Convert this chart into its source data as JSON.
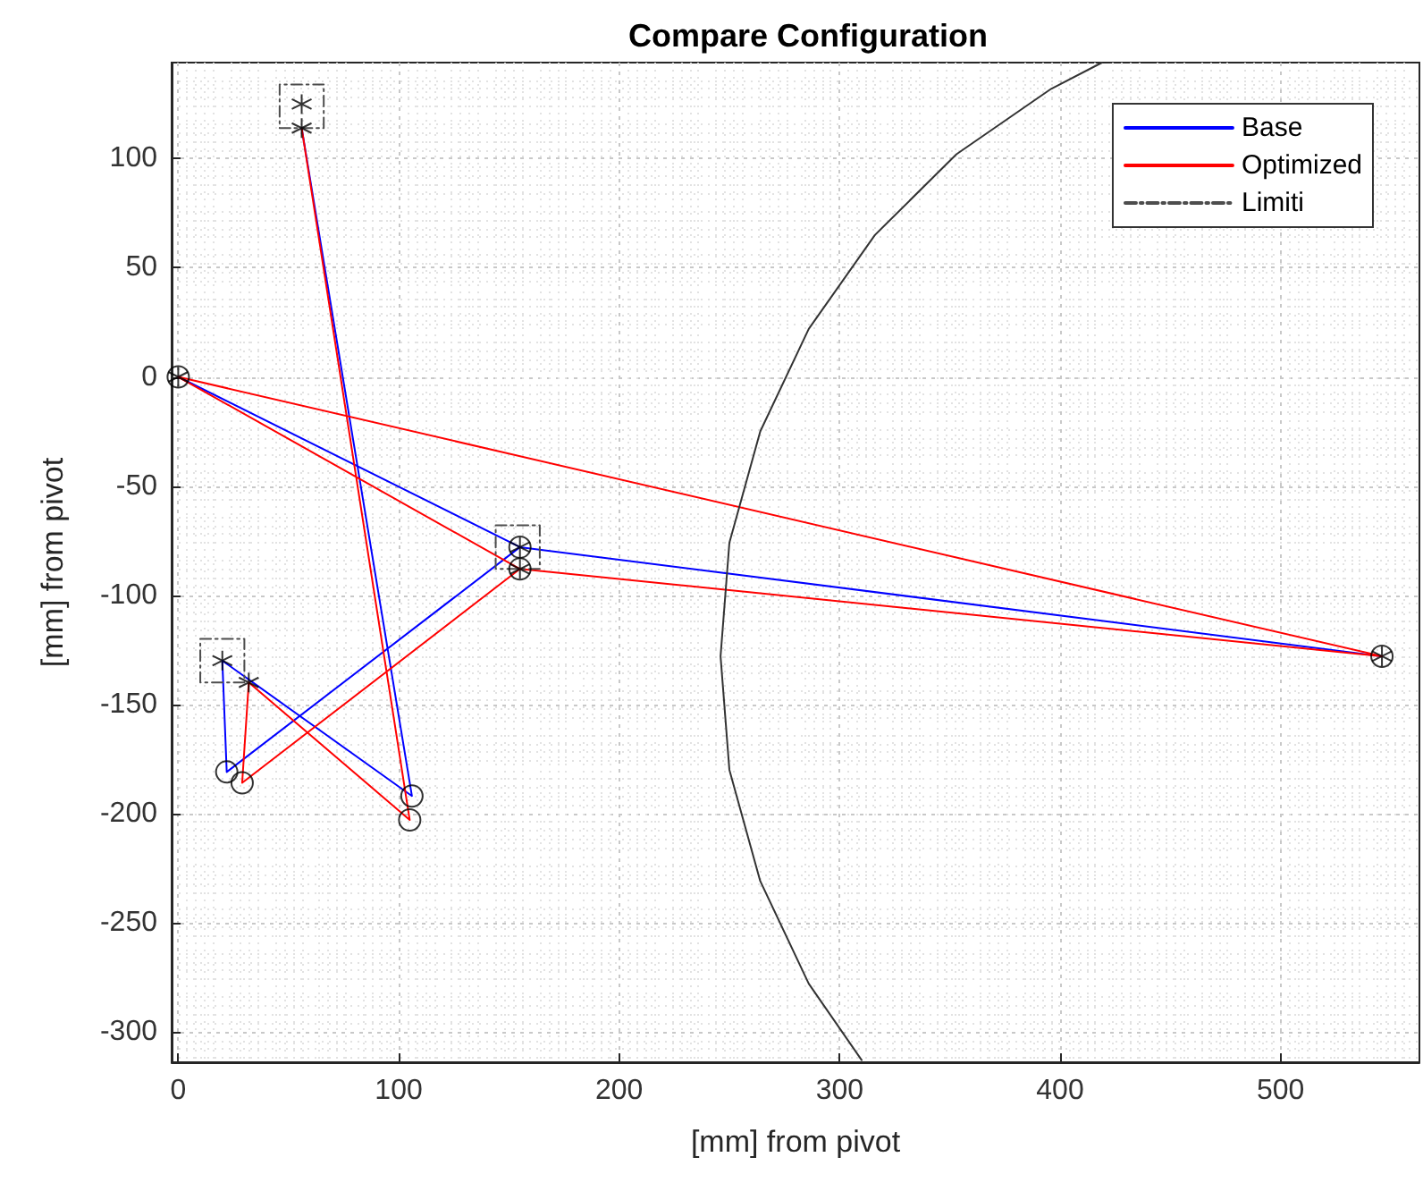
{
  "chart_data": {
    "type": "line",
    "title": "Compare Configuration",
    "xlabel": "[mm] from pivot",
    "ylabel": "[mm] from pivot",
    "xlim": [
      -3,
      563
    ],
    "xticks": [
      0,
      100,
      200,
      300,
      400,
      500
    ],
    "ylim": [
      -314,
      144
    ],
    "yticks": [
      -300,
      -250,
      -200,
      -150,
      -100,
      -50,
      0,
      50,
      100
    ],
    "grid": true,
    "legend": "top right",
    "series": [
      {
        "name": "Base",
        "color": "#0000ff",
        "line_style": "solid",
        "marker": "none",
        "x": [
          0,
          155,
          546,
          null,
          155,
          22,
          20,
          106,
          56
        ],
        "values": [
          0,
          -78,
          -128,
          null,
          -78,
          -181,
          -130,
          -192,
          114
        ]
      },
      {
        "name": "Optimized",
        "color": "#ff0000",
        "line_style": "solid",
        "marker": "none",
        "x": [
          56,
          105,
          32,
          29,
          155,
          0,
          546,
          155
        ],
        "values": [
          114,
          -203,
          -140,
          -186,
          -88,
          0,
          -128,
          -88
        ]
      },
      {
        "name": "Limiti",
        "color": "#4d4d4d",
        "line_style": "dashed",
        "marker": "none",
        "x": [
          46,
          66,
          66,
          46,
          46,
          66,
          null,
          10,
          30,
          30,
          10,
          10,
          30,
          null,
          144,
          164,
          164,
          144,
          144,
          164
        ],
        "values": [
          114,
          114,
          134,
          134,
          114,
          114,
          null,
          -120,
          -120,
          -140,
          -140,
          -120,
          -120,
          null,
          -68,
          -68,
          -88,
          -88,
          -68,
          -68
        ]
      },
      {
        "color": "#333333",
        "line_style": "solid",
        "marker": "none",
        "x": [
          419,
          396,
          353,
          316,
          286,
          264,
          250,
          246,
          250,
          264,
          286,
          310
        ],
        "values": [
          144,
          132,
          102,
          65,
          22,
          -25,
          -76,
          -128,
          -180,
          -231,
          -278,
          -313
        ]
      },
      {
        "type": "scatter",
        "color": "#000000",
        "marker": "circle",
        "x": [
          0,
          155,
          155,
          546,
          106,
          105,
          22,
          29
        ],
        "values": [
          0,
          -78,
          -88,
          -128,
          -192,
          -203,
          -181,
          -186
        ]
      },
      {
        "type": "scatter",
        "color": "#000000",
        "marker": "cross",
        "x": [
          0,
          155,
          155,
          546,
          56,
          56,
          20,
          32
        ],
        "values": [
          0,
          -78,
          -88,
          -128,
          114,
          125,
          -130,
          -140
        ]
      }
    ]
  }
}
